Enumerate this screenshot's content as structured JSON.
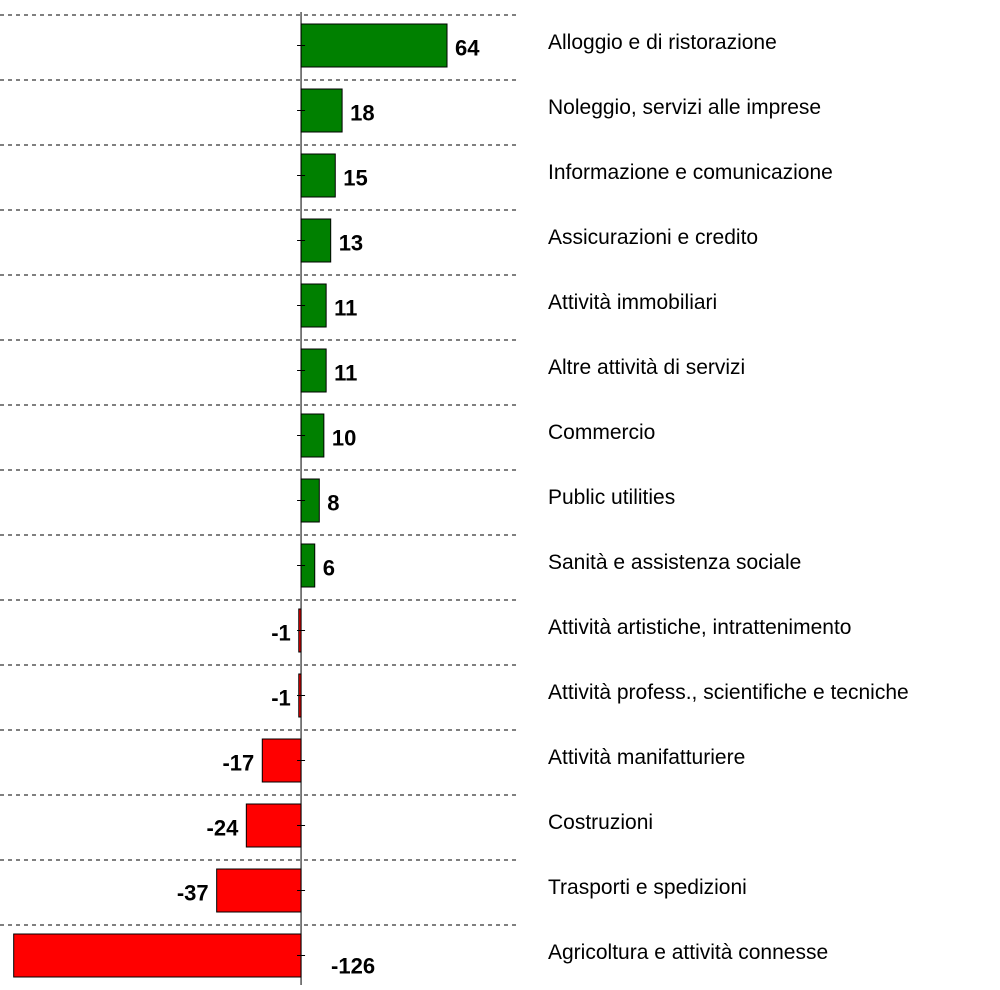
{
  "chart_data": {
    "type": "barh",
    "categories": [
      "Alloggio e di ristorazione",
      "Noleggio, servizi alle imprese",
      "Informazione e comunicazione",
      "Assicurazioni e credito",
      "Attività immobiliari",
      "Altre attività di servizi",
      "Commercio",
      "Public utilities",
      "Sanità e assistenza sociale",
      "Attività artistiche,  intrattenimento",
      "Attività profess., scientifiche e tecniche",
      "Attività manifatturiere",
      "Costruzioni",
      "Trasporti e spedizioni",
      "Agricoltura e attività connesse"
    ],
    "values": [
      64,
      18,
      15,
      13,
      11,
      11,
      10,
      8,
      6,
      -1,
      -1,
      -17,
      -24,
      -37,
      -126
    ],
    "positive_color": "#008000",
    "negative_color": "#ff0000",
    "xlim": [
      -132,
      96
    ]
  }
}
